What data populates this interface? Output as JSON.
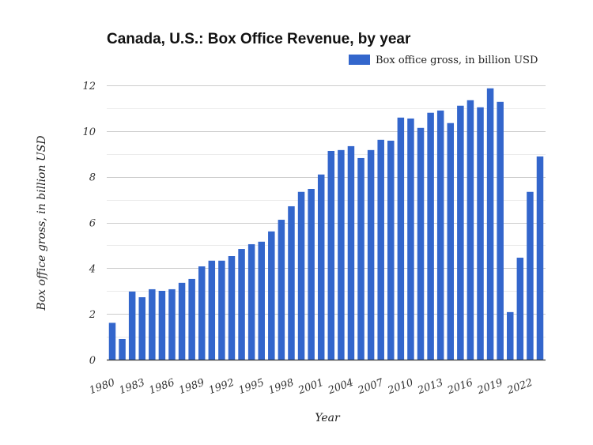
{
  "chart_data": {
    "type": "bar",
    "title": "Canada, U.S.: Box Office Revenue, by year",
    "xlabel": "Year",
    "ylabel": "Box office gross, in billion USD",
    "ylim": [
      0,
      12
    ],
    "yticks": [
      "0",
      "2",
      "4",
      "6",
      "8",
      "10",
      "12"
    ],
    "grid": true,
    "legend_position": "top-right",
    "color": "#3366cc",
    "categories": [
      1980,
      1981,
      1982,
      1983,
      1984,
      1985,
      1986,
      1987,
      1988,
      1989,
      1990,
      1991,
      1992,
      1993,
      1994,
      1995,
      1996,
      1997,
      1998,
      1999,
      2000,
      2001,
      2002,
      2003,
      2004,
      2005,
      2006,
      2007,
      2008,
      2009,
      2010,
      2011,
      2012,
      2013,
      2014,
      2015,
      2016,
      2017,
      2018,
      2019,
      2020,
      2021,
      2022,
      2023
    ],
    "xtick_labels": [
      "1980",
      "1983",
      "1986",
      "1989",
      "1992",
      "1995",
      "1998",
      "2001",
      "2004",
      "2007",
      "2010",
      "2013",
      "2016",
      "2019",
      "2022"
    ],
    "series": [
      {
        "name": "Box office gross, in billion USD",
        "values": [
          1.61,
          0.9,
          2.98,
          2.73,
          3.08,
          3.01,
          3.08,
          3.36,
          3.53,
          4.08,
          4.33,
          4.33,
          4.53,
          4.84,
          5.05,
          5.16,
          5.61,
          6.12,
          6.71,
          7.34,
          7.47,
          8.1,
          9.13,
          9.17,
          9.34,
          8.82,
          9.17,
          9.62,
          9.58,
          10.59,
          10.55,
          10.14,
          10.8,
          10.9,
          10.35,
          11.11,
          11.35,
          11.04,
          11.87,
          11.28,
          2.08,
          4.46,
          7.34,
          8.89
        ]
      }
    ]
  }
}
